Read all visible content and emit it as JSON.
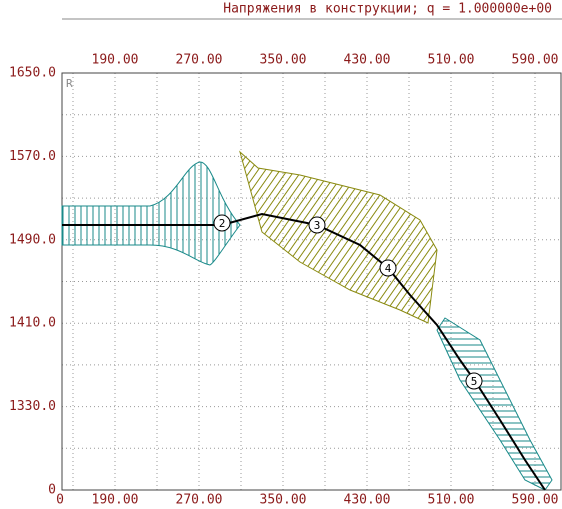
{
  "title": "Напряжения в конструкции;    q = 1.000000e+00",
  "corner_label": "R",
  "x_ticks_top": [
    "190.00",
    "270.00",
    "350.00",
    "430.00",
    "510.00",
    "590.00"
  ],
  "x_ticks_bottom": [
    "0",
    "190.00",
    "270.00",
    "350.00",
    "430.00",
    "510.00",
    "590.00"
  ],
  "y_ticks": [
    "1650.0",
    "1570.0",
    "1490.0",
    "1410.0",
    "1330.0",
    "0"
  ],
  "nodes": [
    {
      "label": "2"
    },
    {
      "label": "3"
    },
    {
      "label": "4"
    },
    {
      "label": "5"
    }
  ]
}
